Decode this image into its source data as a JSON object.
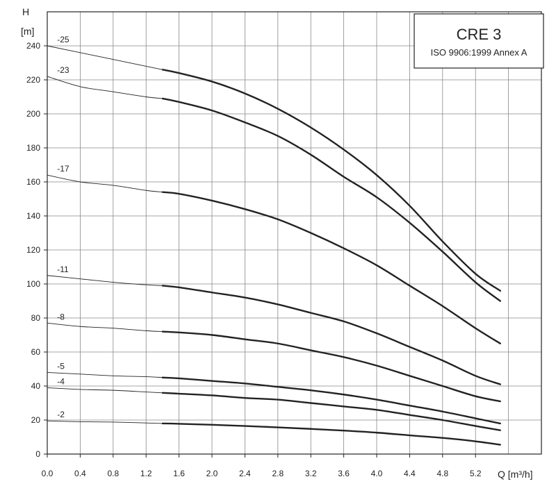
{
  "chart_data": {
    "type": "line",
    "title": "CRE 3",
    "subtitle": "ISO 9906:1999 Annex A",
    "x_axis": {
      "label": "Q [m³/h]",
      "min": 0,
      "max": 5.4,
      "ticks": [
        "0.0",
        "0.4",
        "0.8",
        "1.2",
        "1.6",
        "2.0",
        "2.4",
        "2.8",
        "3.2",
        "3.6",
        "4.0",
        "4.4",
        "4.8",
        "5.2"
      ]
    },
    "y_axis": {
      "label_top": "H",
      "label_unit": "[m]",
      "min": 0,
      "max": 240,
      "ticks": [
        "0",
        "20",
        "40",
        "60",
        "80",
        "100",
        "120",
        "140",
        "160",
        "180",
        "200",
        "220",
        "240"
      ]
    },
    "grid": true,
    "recommended_range_start": 1.4,
    "series": [
      {
        "name": "-25",
        "x": [
          0,
          0.4,
          0.8,
          1.2,
          1.4,
          1.6,
          2.0,
          2.4,
          2.8,
          3.2,
          3.6,
          4.0,
          4.4,
          4.8,
          5.2,
          5.5
        ],
        "y": [
          240,
          236,
          232,
          228,
          226,
          224,
          219,
          212,
          203,
          192,
          179,
          164,
          146,
          125,
          106,
          96
        ]
      },
      {
        "name": "-23",
        "x": [
          0,
          0.4,
          0.8,
          1.2,
          1.4,
          1.6,
          2.0,
          2.4,
          2.8,
          3.2,
          3.6,
          4.0,
          4.4,
          4.8,
          5.2,
          5.5
        ],
        "y": [
          222,
          216,
          213,
          210,
          209,
          207,
          202,
          195,
          187,
          176,
          163,
          151,
          136,
          119,
          101,
          90
        ]
      },
      {
        "name": "-17",
        "x": [
          0,
          0.4,
          0.8,
          1.2,
          1.4,
          1.6,
          2.0,
          2.4,
          2.8,
          3.2,
          3.6,
          4.0,
          4.4,
          4.8,
          5.2,
          5.5
        ],
        "y": [
          164,
          160,
          158,
          155,
          154,
          153,
          149,
          144,
          138,
          130,
          121,
          111,
          99,
          87,
          74,
          65
        ]
      },
      {
        "name": "-11",
        "x": [
          0,
          0.4,
          0.8,
          1.2,
          1.4,
          1.6,
          2.0,
          2.4,
          2.8,
          3.2,
          3.6,
          4.0,
          4.4,
          4.8,
          5.2,
          5.5
        ],
        "y": [
          105,
          103,
          101,
          99.5,
          99,
          98,
          95,
          92,
          88,
          83,
          78,
          71,
          63,
          55,
          46,
          41
        ]
      },
      {
        "name": "-8",
        "x": [
          0,
          0.4,
          0.8,
          1.2,
          1.4,
          1.6,
          2.0,
          2.4,
          2.8,
          3.2,
          3.6,
          4.0,
          4.4,
          4.8,
          5.2,
          5.5
        ],
        "y": [
          77,
          75,
          74,
          72.5,
          72,
          71.5,
          70,
          67.5,
          65,
          61,
          57,
          52,
          46,
          40,
          34,
          31
        ]
      },
      {
        "name": "-5",
        "x": [
          0,
          0.4,
          0.8,
          1.2,
          1.4,
          1.6,
          2.0,
          2.4,
          2.8,
          3.2,
          3.6,
          4.0,
          4.4,
          4.8,
          5.2,
          5.5
        ],
        "y": [
          48,
          47,
          46,
          45.5,
          45,
          44.5,
          43,
          41.5,
          39.5,
          37.5,
          35,
          32,
          28.5,
          25,
          21,
          18
        ]
      },
      {
        "name": "-4",
        "x": [
          0,
          0.4,
          0.8,
          1.2,
          1.4,
          1.6,
          2.0,
          2.4,
          2.8,
          3.2,
          3.6,
          4.0,
          4.4,
          4.8,
          5.2,
          5.5
        ],
        "y": [
          39,
          38,
          37.5,
          36.5,
          36,
          35.5,
          34.5,
          33,
          32,
          30,
          28,
          26,
          23,
          20,
          16.5,
          14
        ]
      },
      {
        "name": "-2",
        "x": [
          0,
          0.4,
          0.8,
          1.2,
          1.4,
          1.6,
          2.0,
          2.4,
          2.8,
          3.2,
          3.6,
          4.0,
          4.4,
          4.8,
          5.2,
          5.5
        ],
        "y": [
          19.5,
          19,
          18.8,
          18.3,
          18,
          17.8,
          17.2,
          16.5,
          15.7,
          14.8,
          13.8,
          12.6,
          11,
          9.5,
          7.5,
          5.5
        ]
      }
    ]
  }
}
